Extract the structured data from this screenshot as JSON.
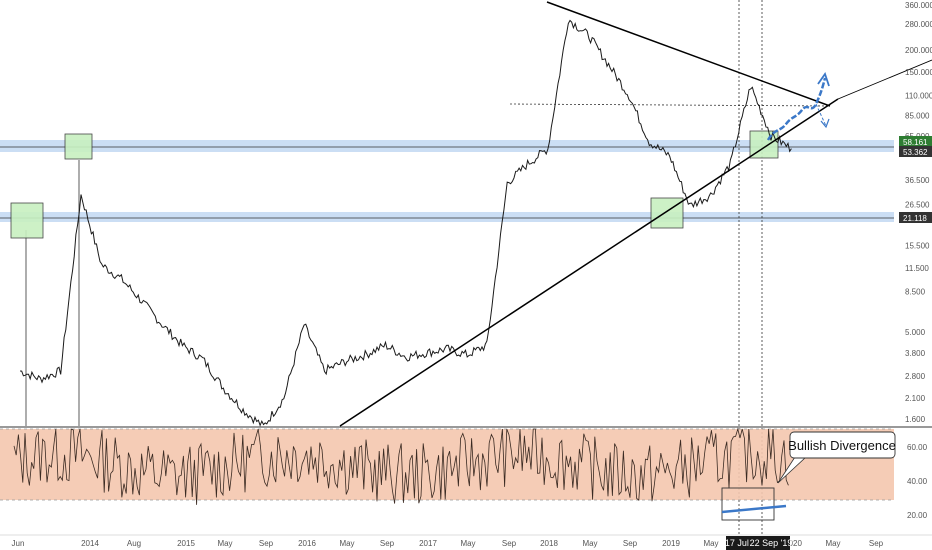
{
  "chart_data": [
    {
      "type": "line",
      "panel": "price",
      "scale": "log",
      "ylim": [
        1.3,
        400
      ],
      "yticks": [
        "360.000",
        "280.000",
        "200.000",
        "150.000",
        "110.000",
        "85.000",
        "65.000",
        "36.500",
        "26.500",
        "15.500",
        "11.500",
        "8.500",
        "5.000",
        "3.800",
        "2.800",
        "2.100",
        "1.600"
      ],
      "price_labels": [
        {
          "value": 58.161,
          "text": "58.161",
          "color": "#2e7d32"
        },
        {
          "value": 53.362,
          "text": "53.362",
          "color": "#333333"
        },
        {
          "value": 21.118,
          "text": "21.118",
          "color": "#333333"
        }
      ],
      "x": [
        "2013-06",
        "2013-08",
        "2013-10",
        "2013-12",
        "2014-02",
        "2014-04",
        "2014-06",
        "2014-08",
        "2014-10",
        "2014-12",
        "2015-02",
        "2015-04",
        "2015-06",
        "2015-08",
        "2015-10",
        "2015-12",
        "2016-02",
        "2016-04",
        "2016-06",
        "2016-08",
        "2016-10",
        "2016-12",
        "2017-02",
        "2017-04",
        "2017-06",
        "2017-08",
        "2017-10",
        "2017-12",
        "2018-02",
        "2018-04",
        "2018-06",
        "2018-08",
        "2018-10",
        "2018-12",
        "2019-02",
        "2019-04",
        "2019-06",
        "2019-08",
        "2019-10"
      ],
      "values": [
        3.0,
        2.7,
        3.0,
        30,
        12,
        10,
        7.5,
        5.5,
        4.2,
        3.5,
        2.4,
        1.8,
        1.45,
        2.1,
        5.5,
        3.0,
        3.4,
        3.7,
        4.2,
        3.6,
        3.8,
        4.0,
        3.7,
        4.2,
        35,
        45,
        55,
        300,
        240,
        165,
        110,
        60,
        50,
        26,
        30,
        45,
        125,
        65,
        55
      ],
      "support_levels": [
        58.161,
        53.362,
        21.118
      ],
      "highlight_boxes": 4,
      "annotations": []
    },
    {
      "type": "line",
      "panel": "oscillator",
      "ylim": [
        15,
        70
      ],
      "yticks": [
        "60.00",
        "40.00",
        "20.00"
      ],
      "band": [
        30,
        70
      ],
      "annotations": [
        "Bullish Divergence"
      ]
    }
  ],
  "x_axis": {
    "ticks": [
      "Jun",
      "2014",
      "Aug",
      "2015",
      "May",
      "Sep",
      "2016",
      "May",
      "Sep",
      "2017",
      "May",
      "Sep",
      "2018",
      "May",
      "Sep",
      "2019",
      "May",
      "2020",
      "May",
      "Sep"
    ],
    "highlight_labels": [
      "17 Jul '",
      "22 Sep '19"
    ]
  },
  "colors": {
    "price_line": "#1a1a1a",
    "support_band": "#b9d3f0",
    "support_box": "#c8f0c0",
    "rsi_band": "#f4c6ae",
    "projection": "#3b78c8",
    "axis_text": "#555555"
  }
}
